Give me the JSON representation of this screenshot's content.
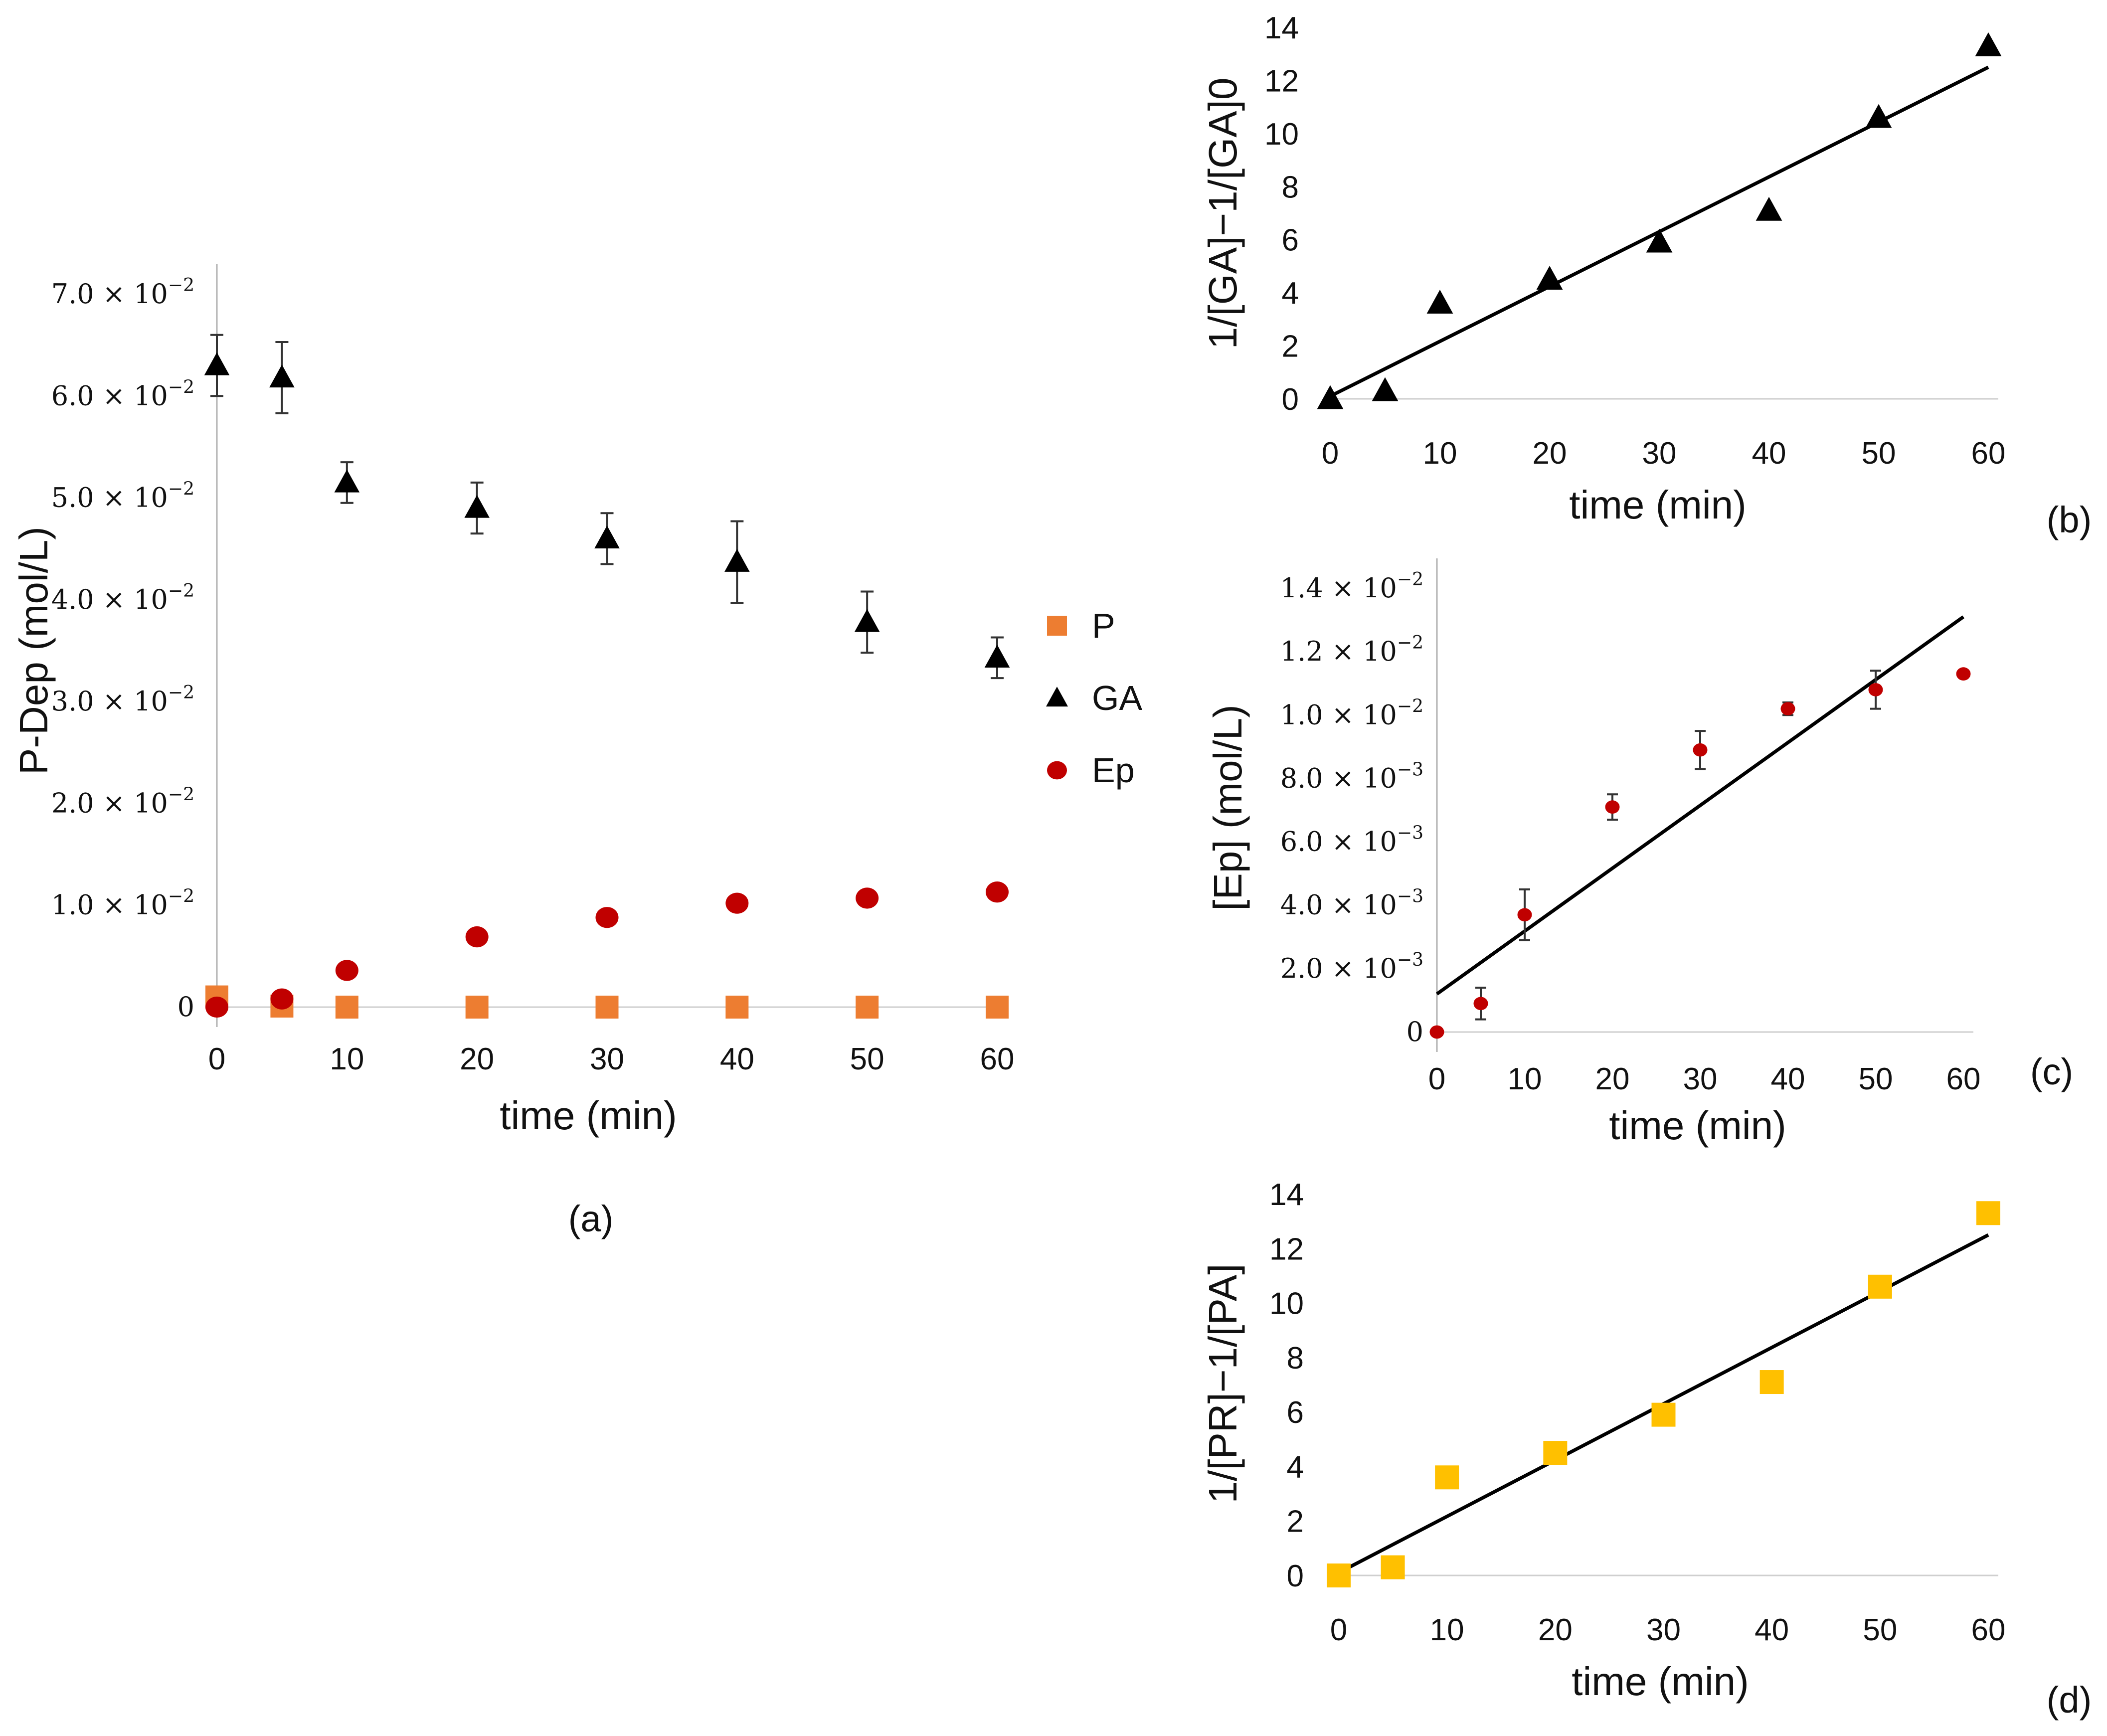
{
  "chart_data": [
    {
      "id": "a",
      "type": "scatter",
      "panel_label": "(a)",
      "xlabel": "time (min)",
      "ylabel": "P-Dep (mol/L)",
      "xlim": [
        0,
        60
      ],
      "ylim": [
        0,
        0.07
      ],
      "xticks": [
        "0",
        "10",
        "20",
        "30",
        "40",
        "50",
        "60"
      ],
      "yticks": [
        {
          "value": 0,
          "mant": "0",
          "exp": ""
        },
        {
          "value": 0.01,
          "mant": "1.0 × 10",
          "exp": "−2"
        },
        {
          "value": 0.02,
          "mant": "2.0 × 10",
          "exp": "−2"
        },
        {
          "value": 0.03,
          "mant": "3.0 × 10",
          "exp": "−2"
        },
        {
          "value": 0.04,
          "mant": "4.0 × 10",
          "exp": "−2"
        },
        {
          "value": 0.05,
          "mant": "5.0 × 10",
          "exp": "−2"
        },
        {
          "value": 0.06,
          "mant": "6.0 × 10",
          "exp": "−2"
        },
        {
          "value": 0.07,
          "mant": "7.0 × 10",
          "exp": "−2"
        }
      ],
      "legend_position": "right",
      "series": [
        {
          "name": "P",
          "marker": "square",
          "color": "#ed7d31",
          "x": [
            0,
            5,
            10,
            20,
            30,
            40,
            50,
            60
          ],
          "y": [
            0.001,
            0.0001,
            0,
            0,
            0,
            0,
            0,
            0
          ]
        },
        {
          "name": "GA",
          "marker": "triangle",
          "color": "#000000",
          "x": [
            0,
            5,
            10,
            20,
            30,
            40,
            50,
            60
          ],
          "y": [
            0.063,
            0.0618,
            0.0515,
            0.049,
            0.046,
            0.0437,
            0.0378,
            0.0343
          ],
          "err": [
            0.003,
            0.0035,
            0.002,
            0.0025,
            0.0025,
            0.004,
            0.003,
            0.002
          ]
        },
        {
          "name": "Ep",
          "marker": "circle",
          "color": "#c00000",
          "x": [
            0,
            5,
            10,
            20,
            30,
            40,
            50,
            60
          ],
          "y": [
            0,
            0.0008,
            0.0036,
            0.0069,
            0.0088,
            0.0102,
            0.0107,
            0.0113
          ]
        }
      ]
    },
    {
      "id": "b",
      "type": "scatter",
      "panel_label": "(b)",
      "xlabel": "time (min)",
      "ylabel": "1/[GA]−1/[GA]0",
      "xlim": [
        0,
        60
      ],
      "ylim": [
        0,
        14
      ],
      "xticks": [
        "0",
        "10",
        "20",
        "30",
        "40",
        "50",
        "60"
      ],
      "yticks": [
        "0",
        "2",
        "4",
        "6",
        "8",
        "10",
        "12",
        "14"
      ],
      "series": [
        {
          "name": "GA",
          "marker": "triangle",
          "color": "#000000",
          "x": [
            0,
            5,
            10,
            20,
            30,
            40,
            50,
            60
          ],
          "y": [
            0,
            0.3,
            3.6,
            4.5,
            5.9,
            7.1,
            10.6,
            13.3
          ]
        }
      ],
      "fit_line": {
        "x": [
          0,
          60
        ],
        "y": [
          0.1,
          12.5
        ]
      }
    },
    {
      "id": "c",
      "type": "scatter",
      "panel_label": "(c)",
      "xlabel": "time (min)",
      "ylabel": "[Ep]  (mol/L)",
      "xlim": [
        0,
        60
      ],
      "ylim": [
        0,
        0.014
      ],
      "xticks": [
        "0",
        "10",
        "20",
        "30",
        "40",
        "50",
        "60"
      ],
      "yticks": [
        {
          "value": 0,
          "mant": "0",
          "exp": ""
        },
        {
          "value": 0.002,
          "mant": "2.0 × 10",
          "exp": "−3"
        },
        {
          "value": 0.004,
          "mant": "4.0 × 10",
          "exp": "−3"
        },
        {
          "value": 0.006,
          "mant": "6.0 × 10",
          "exp": "−3"
        },
        {
          "value": 0.008,
          "mant": "8.0 × 10",
          "exp": "−3"
        },
        {
          "value": 0.01,
          "mant": "1.0 × 10",
          "exp": "−2"
        },
        {
          "value": 0.012,
          "mant": "1.2 × 10",
          "exp": "−2"
        },
        {
          "value": 0.014,
          "mant": "1.4 × 10",
          "exp": "−2"
        }
      ],
      "series": [
        {
          "name": "Ep",
          "marker": "circle",
          "color": "#c00000",
          "x": [
            0,
            5,
            10,
            20,
            30,
            40,
            50,
            60
          ],
          "y": [
            0,
            0.0009,
            0.0037,
            0.0071,
            0.0089,
            0.0102,
            0.0108,
            0.0113
          ],
          "err": [
            0,
            0.0005,
            0.0008,
            0.0004,
            0.0006,
            0.0002,
            0.0006,
            0
          ]
        }
      ],
      "fit_line": {
        "x": [
          0,
          60
        ],
        "y": [
          0.0012,
          0.0131
        ]
      }
    },
    {
      "id": "d",
      "type": "scatter",
      "panel_label": "(d)",
      "xlabel": "time (min)",
      "ylabel": "1/[PR]−1/[PA]",
      "xlim": [
        0,
        60
      ],
      "ylim": [
        0,
        14
      ],
      "xticks": [
        "0",
        "10",
        "20",
        "30",
        "40",
        "50",
        "60"
      ],
      "yticks": [
        "0",
        "2",
        "4",
        "6",
        "8",
        "10",
        "12",
        "14"
      ],
      "series": [
        {
          "name": "PR",
          "marker": "square",
          "color": "#ffc000",
          "x": [
            0,
            5,
            10,
            20,
            30,
            40,
            50,
            60
          ],
          "y": [
            0,
            0.3,
            3.6,
            4.5,
            5.9,
            7.1,
            10.6,
            13.3
          ]
        }
      ],
      "fit_line": {
        "x": [
          0,
          60
        ],
        "y": [
          0.1,
          12.5
        ]
      }
    }
  ]
}
